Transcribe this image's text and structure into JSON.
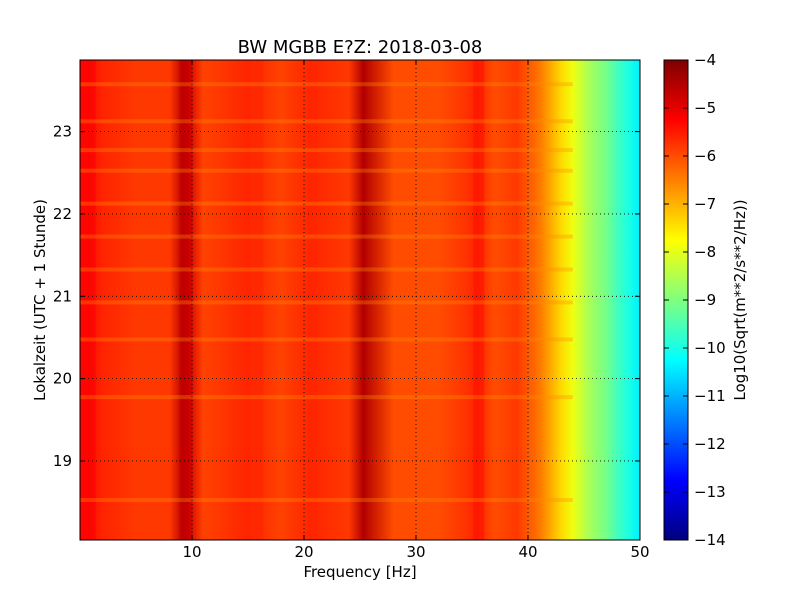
{
  "chart_data": [
    {
      "type": "heatmap",
      "title": "BW MGBB E?Z: 2018-03-08",
      "xlabel": "Frequency [Hz]",
      "ylabel": "Lokalzeit (UTC + 1 Stunde)",
      "xlim": [
        0,
        50
      ],
      "ylim": [
        23.87,
        18.04
      ],
      "x_ticks": [
        10,
        20,
        30,
        40,
        50
      ],
      "y_ticks": [
        19,
        20,
        21,
        22,
        23
      ],
      "grid": true,
      "grid_style": "dotted",
      "colormap": "jet",
      "color_range": [
        -14,
        -4
      ],
      "colorbar_label": "Log10(Sqrt(m**2/s**2/Hz))",
      "colorbar_ticks": [
        -4,
        -5,
        -6,
        -7,
        -8,
        -9,
        -10,
        -11,
        -12,
        -13,
        -14
      ],
      "z_profile_vs_frequency": {
        "frequency": [
          0.5,
          2,
          5,
          8,
          9.2,
          9.7,
          11,
          15,
          16,
          18,
          20.5,
          24,
          25.3,
          28,
          32,
          34,
          35.5,
          37,
          39,
          40,
          41,
          42,
          43,
          44,
          45,
          46,
          47,
          48,
          49,
          50
        ],
        "value": [
          -5.3,
          -5.6,
          -5.8,
          -5.8,
          -4.6,
          -4.9,
          -5.9,
          -5.6,
          -5.7,
          -5.9,
          -5.6,
          -5.8,
          -4.5,
          -6.0,
          -6.0,
          -5.8,
          -5.6,
          -6.0,
          -5.8,
          -6.1,
          -6.4,
          -6.9,
          -7.4,
          -7.9,
          -8.4,
          -8.8,
          -9.1,
          -9.6,
          -10.0,
          -10.4
        ]
      }
    }
  ]
}
